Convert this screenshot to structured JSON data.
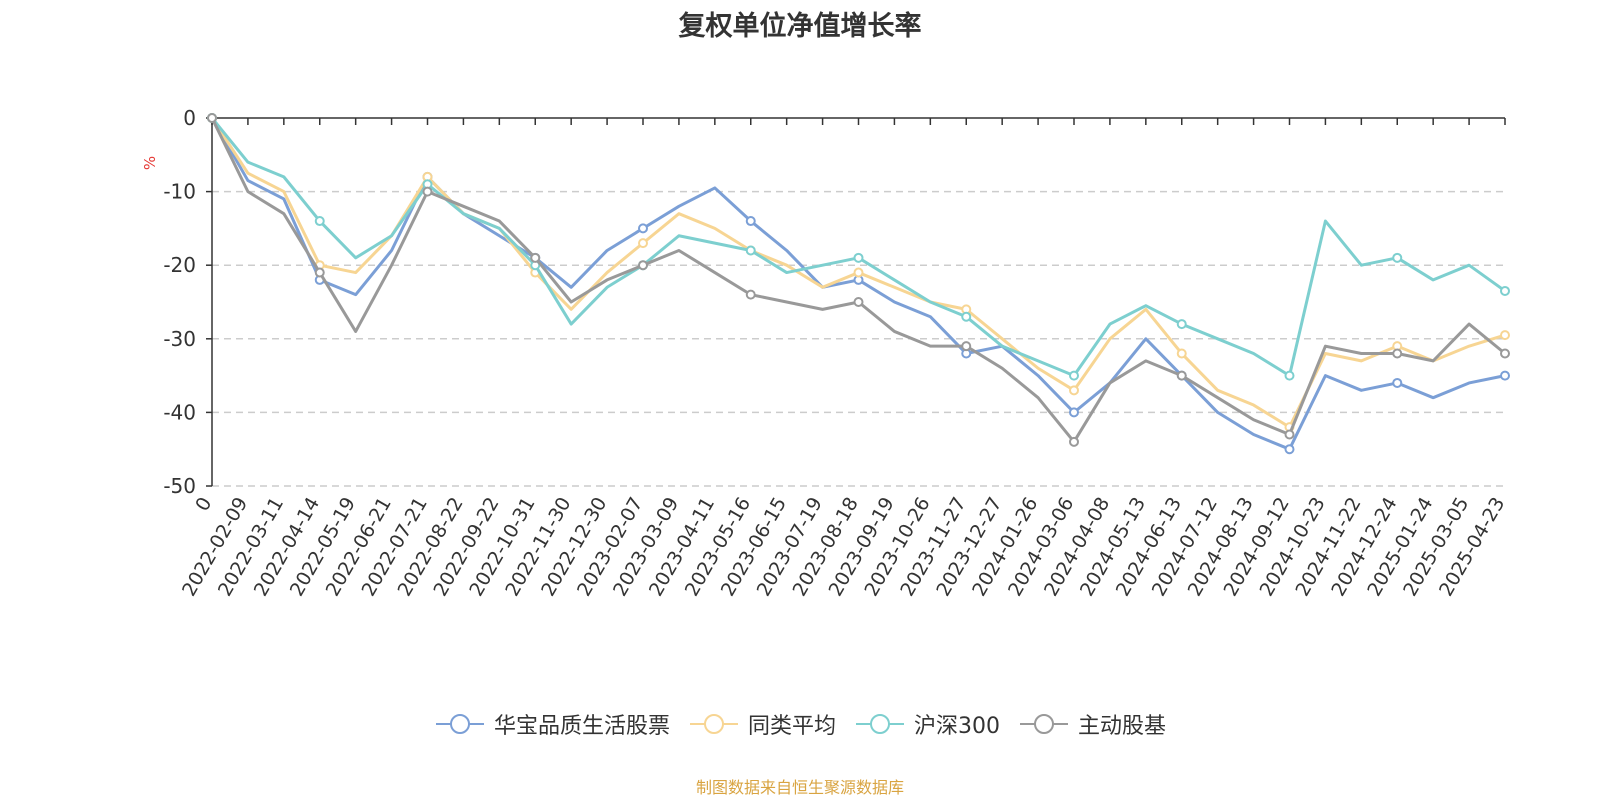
{
  "chart_data": {
    "type": "line",
    "title": "复权单位净值增长率",
    "ylabel": "%",
    "ylim": [
      -50,
      0
    ],
    "y_ticks": [
      "0",
      "-10",
      "-20",
      "-30",
      "-40",
      "-50"
    ],
    "x_labels": [
      "0",
      "2022-02-09",
      "2022-03-11",
      "2022-04-14",
      "2022-05-19",
      "2022-06-21",
      "2022-07-21",
      "2022-08-22",
      "2022-09-22",
      "2022-10-31",
      "2022-11-30",
      "2022-12-30",
      "2023-02-07",
      "2023-03-09",
      "2023-04-11",
      "2023-05-16",
      "2023-06-15",
      "2023-07-19",
      "2023-08-18",
      "2023-09-19",
      "2023-10-26",
      "2023-11-27",
      "2023-12-27",
      "2024-01-26",
      "2024-03-06",
      "2024-04-08",
      "2024-05-13",
      "2024-06-13",
      "2024-07-12",
      "2024-08-13",
      "2024-09-12",
      "2024-10-23",
      "2024-11-22",
      "2024-12-24",
      "2025-01-24",
      "2025-03-05",
      "2025-04-23"
    ],
    "grid": true,
    "legend_position": "bottom",
    "series": [
      {
        "name": "华宝品质生活股票",
        "color": "#7b9fd6",
        "values": [
          0,
          -8.5,
          -11,
          -22,
          -24,
          -18,
          -8,
          -13,
          -16,
          -19,
          -23,
          -18,
          -15,
          -12,
          -9.5,
          -14,
          -18,
          -23,
          -22,
          -25,
          -27,
          -32,
          -31,
          -35,
          -40,
          -36,
          -30,
          -35,
          -40,
          -43,
          -45,
          -35,
          -37,
          -36,
          -38,
          -36,
          -35
        ]
      },
      {
        "name": "同类平均",
        "color": "#f7d593",
        "values": [
          0,
          -7.5,
          -10,
          -20,
          -21,
          -16,
          -8,
          -13,
          -15,
          -21,
          -26,
          -21,
          -17,
          -13,
          -15,
          -18,
          -20,
          -23,
          -21,
          -23,
          -25,
          -26,
          -30,
          -34,
          -37,
          -30,
          -26,
          -32,
          -37,
          -39,
          -42,
          -32,
          -33,
          -31,
          -33,
          -31,
          -29.5
        ]
      },
      {
        "name": "沪深300",
        "color": "#7dcfcf",
        "values": [
          0,
          -6,
          -8,
          -14,
          -19,
          -16,
          -9,
          -13,
          -15,
          -20,
          -28,
          -23,
          -20,
          -16,
          -17,
          -18,
          -21,
          -20,
          -19,
          -22,
          -25,
          -27,
          -31,
          -33,
          -35,
          -28,
          -25.5,
          -28,
          -30,
          -32,
          -35,
          -14,
          -20,
          -19,
          -22,
          -20,
          -23.5
        ]
      },
      {
        "name": "主动股基",
        "color": "#999999",
        "values": [
          0,
          -10,
          -13,
          -21,
          -29,
          -20,
          -10,
          -12,
          -14,
          -19,
          -25,
          -22,
          -20,
          -18,
          -21,
          -24,
          -25,
          -26,
          -25,
          -29,
          -31,
          -31,
          -34,
          -38,
          -44,
          -36,
          -33,
          -35,
          -38,
          -41,
          -43,
          -31,
          -32,
          -32,
          -33,
          -28,
          -32
        ]
      }
    ]
  },
  "source": "制图数据来自恒生聚源数据库"
}
